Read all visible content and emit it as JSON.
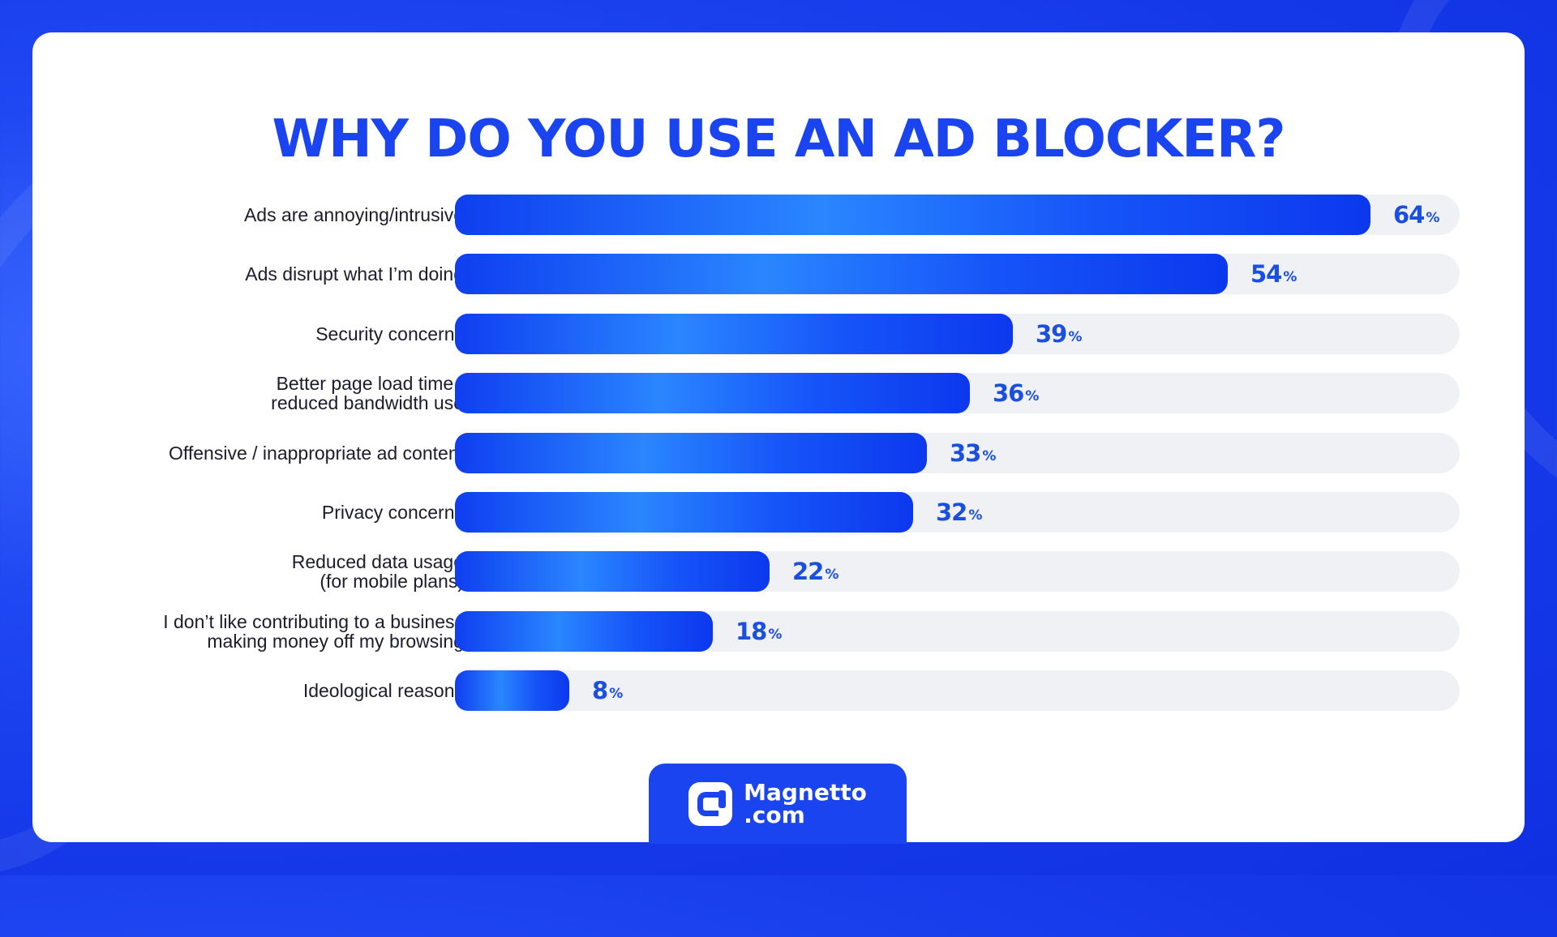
{
  "colors": {
    "background": "#1f47f2",
    "card": "#ffffff",
    "accent": "#1a44f0",
    "bar_start": "#0f3ef0",
    "bar_mid": "#2a86ff",
    "track": "#f0f1f5",
    "value_text": "#1a4fe0"
  },
  "chart_data": {
    "type": "bar",
    "orientation": "horizontal",
    "title": "WHY DO YOU USE AN AD BLOCKER?",
    "xlabel": "",
    "ylabel": "",
    "unit": "%",
    "xlim": [
      0,
      70
    ],
    "grid": false,
    "legend": "none",
    "categories": [
      "Ads are annoying/intrusive",
      "Ads disrupt what I’m doing",
      "Security concerns",
      "Better page load time /\nreduced bandwidth use",
      "Offensive / inappropriate ad content",
      "Privacy concerns",
      "Reduced data usage\n(for mobile plans)",
      "I don’t like contributing to a business\nmaking money off my browsing",
      "Ideological reasons"
    ],
    "values": [
      64,
      54,
      39,
      36,
      33,
      32,
      22,
      18,
      8
    ]
  },
  "footer": {
    "brand_line1": "Magnetto",
    "brand_line2": ".com",
    "logo_icon": "magnetto-logo-icon"
  }
}
